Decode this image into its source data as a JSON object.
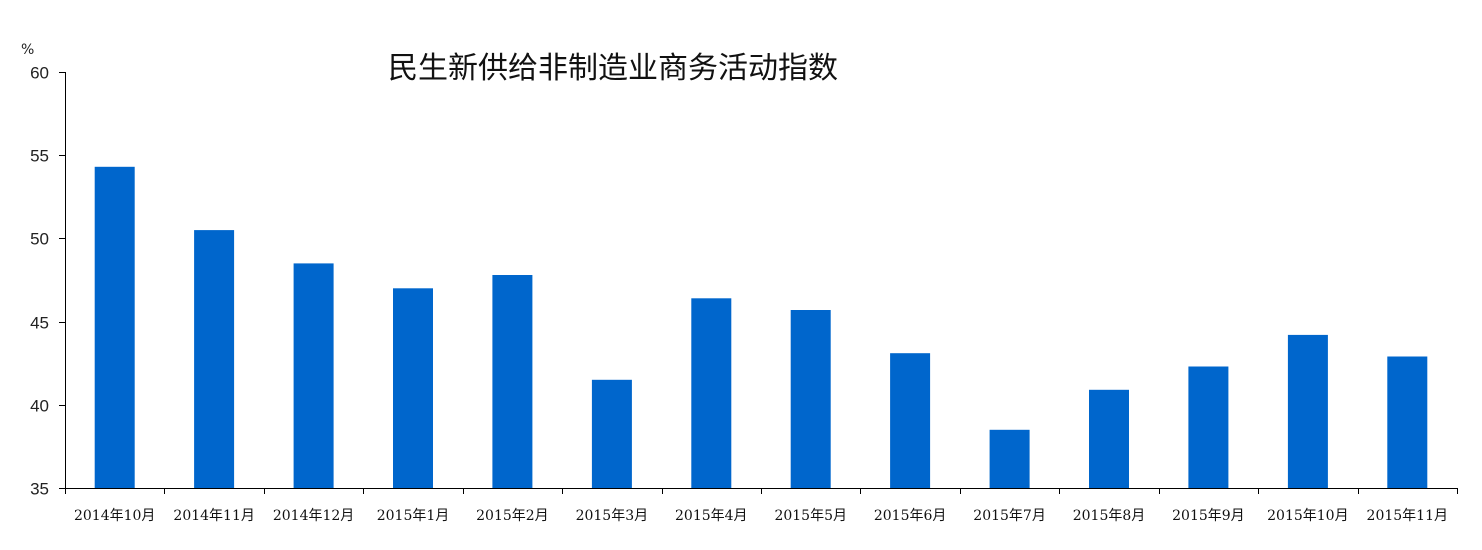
{
  "chart_data": {
    "type": "bar",
    "title": "民生新供给非制造业商务活动指数",
    "ylabel": "%",
    "xlabel": "",
    "ylim": [
      35,
      60
    ],
    "yticks": [
      35,
      40,
      45,
      50,
      55,
      60
    ],
    "grid": false,
    "categories": [
      "2014年10月",
      "2014年11月",
      "2014年12月",
      "2015年1月",
      "2015年2月",
      "2015年3月",
      "2015年4月",
      "2015年5月",
      "2015年6月",
      "2015年7月",
      "2015年8月",
      "2015年9月",
      "2015年10月",
      "2015年11月"
    ],
    "values": [
      54.3,
      50.5,
      48.5,
      47.0,
      47.8,
      41.5,
      46.4,
      45.7,
      43.1,
      38.5,
      40.9,
      42.3,
      44.2,
      42.9
    ],
    "bar_color": "#0066CC"
  }
}
